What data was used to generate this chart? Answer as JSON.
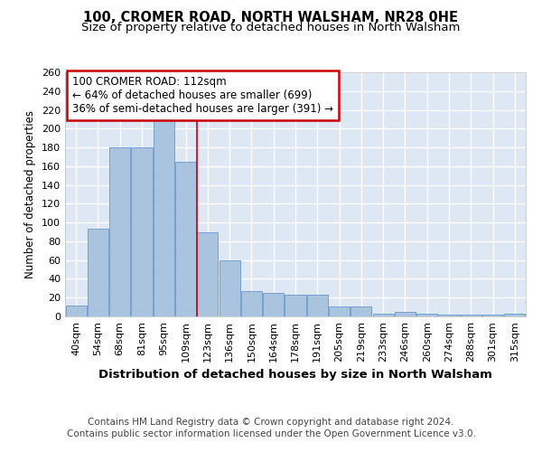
{
  "title": "100, CROMER ROAD, NORTH WALSHAM, NR28 0HE",
  "subtitle": "Size of property relative to detached houses in North Walsham",
  "xlabel": "Distribution of detached houses by size in North Walsham",
  "ylabel": "Number of detached properties",
  "categories": [
    "40sqm",
    "54sqm",
    "68sqm",
    "81sqm",
    "95sqm",
    "109sqm",
    "123sqm",
    "136sqm",
    "150sqm",
    "164sqm",
    "178sqm",
    "191sqm",
    "205sqm",
    "219sqm",
    "233sqm",
    "246sqm",
    "260sqm",
    "274sqm",
    "288sqm",
    "301sqm",
    "315sqm"
  ],
  "values": [
    12,
    93,
    180,
    180,
    210,
    165,
    90,
    60,
    27,
    25,
    23,
    23,
    11,
    11,
    3,
    5,
    3,
    2,
    2,
    2,
    3
  ],
  "bar_color": "#aac4e0",
  "bar_edge_color": "#6699cc",
  "background_color": "#dde8f4",
  "grid_color": "#ffffff",
  "annotation_text": "100 CROMER ROAD: 112sqm\n← 64% of detached houses are smaller (699)\n36% of semi-detached houses are larger (391) →",
  "annotation_box_facecolor": "#ffffff",
  "annotation_box_edgecolor": "#cc0000",
  "redline_x": 5.5,
  "ylim": [
    0,
    260
  ],
  "yticks": [
    0,
    20,
    40,
    60,
    80,
    100,
    120,
    140,
    160,
    180,
    200,
    220,
    240,
    260
  ],
  "footer_line1": "Contains HM Land Registry data © Crown copyright and database right 2024.",
  "footer_line2": "Contains public sector information licensed under the Open Government Licence v3.0.",
  "title_fontsize": 10.5,
  "subtitle_fontsize": 9.5,
  "xlabel_fontsize": 9.5,
  "ylabel_fontsize": 8.5,
  "tick_fontsize": 8,
  "annotation_fontsize": 8.5,
  "footer_fontsize": 7.5
}
